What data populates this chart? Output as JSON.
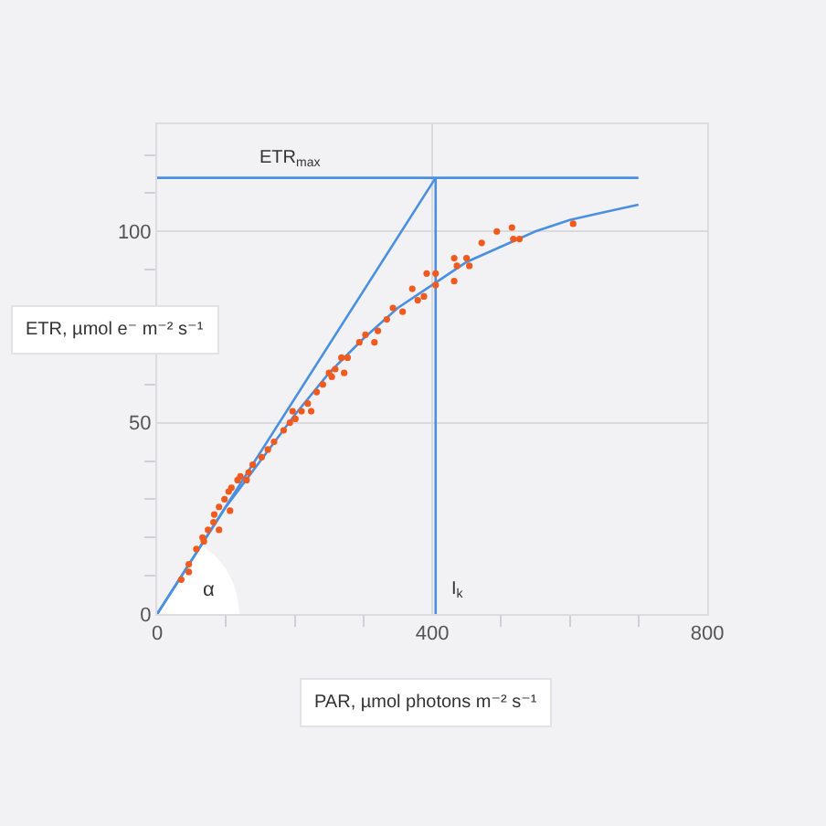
{
  "chart_data": {
    "type": "scatter",
    "xlabel": "PAR, µmol photons m⁻² s⁻¹",
    "ylabel": "ETR, µmol e⁻ m⁻² s⁻¹",
    "xlim": [
      0,
      800
    ],
    "ylim": [
      0,
      128
    ],
    "xticks": [
      0,
      {
        "value": 100,
        "label": null
      },
      {
        "value": 200,
        "label": null
      },
      {
        "value": 300,
        "label": null
      },
      400,
      {
        "value": 500,
        "label": null
      },
      {
        "value": 600,
        "label": null
      },
      {
        "value": 700,
        "label": null
      },
      800
    ],
    "yticks": [
      0,
      {
        "value": 10,
        "label": null
      },
      {
        "value": 20,
        "label": null
      },
      {
        "value": 30,
        "label": null
      },
      {
        "value": 40,
        "label": null
      },
      50,
      {
        "value": 60,
        "label": null
      },
      {
        "value": 70,
        "label": null
      },
      {
        "value": 80,
        "label": null
      },
      {
        "value": 90,
        "label": null
      },
      100,
      {
        "value": 110,
        "label": null
      },
      {
        "value": 120,
        "label": null
      }
    ],
    "grid": true,
    "line_style": "solid",
    "annotations": [
      "ETR$_{max}$",
      "I$_{k}$",
      {
        "text": "α",
        "x": 0,
        "y": 0
      }
    ],
    "series": [
      {
        "marker": "circle",
        "color": "#f05a1e",
        "x": [
          35,
          46,
          46,
          57,
          66,
          68,
          74,
          82,
          83,
          90,
          90,
          98,
          104,
          106,
          108,
          117,
          121,
          130,
          133,
          139,
          152,
          161,
          170,
          184,
          193,
          197,
          201,
          210,
          219,
          224,
          232,
          241,
          250,
          254,
          259,
          268,
          272,
          277,
          294,
          303,
          316,
          321,
          334,
          343,
          357,
          371,
          379,
          388,
          392,
          405,
          405,
          432,
          432,
          436,
          450,
          454,
          472,
          494,
          516,
          518,
          527,
          605
        ],
        "values": [
          9,
          13,
          11,
          17,
          20,
          19,
          22,
          24,
          26,
          28,
          22,
          30,
          32,
          27,
          33,
          35,
          36,
          35,
          37,
          39,
          41,
          43,
          45,
          48,
          50,
          53,
          51,
          53,
          55,
          53,
          58,
          60,
          63,
          62,
          64,
          67,
          63,
          67,
          71,
          73,
          71,
          74,
          77,
          80,
          79,
          85,
          82,
          83,
          89,
          89,
          86,
          87,
          93,
          91,
          93,
          91,
          97,
          100,
          101,
          98,
          98,
          102
        ]
      },
      {
        "type": "line",
        "color": "#4a8fe0",
        "x": [
          0,
          50,
          100,
          150,
          200,
          250,
          300,
          350,
          400,
          450,
          500,
          550,
          600,
          650,
          700
        ],
        "values": [
          0,
          14,
          28,
          40,
          52,
          63,
          72,
          80,
          86,
          92,
          96,
          100,
          103,
          105,
          107
        ]
      },
      {
        "type": "line",
        "color": "#4a8fe0",
        "x": [
          0,
          405
        ],
        "values": [
          0,
          114
        ]
      },
      {
        "type": "line",
        "color": "#4a8fe0",
        "x": [
          0,
          700
        ],
        "values": [
          114,
          114
        ]
      },
      {
        "type": "line",
        "color": "#4a8fe0",
        "x": [
          405,
          405
        ],
        "values": [
          0,
          114
        ]
      }
    ]
  }
}
